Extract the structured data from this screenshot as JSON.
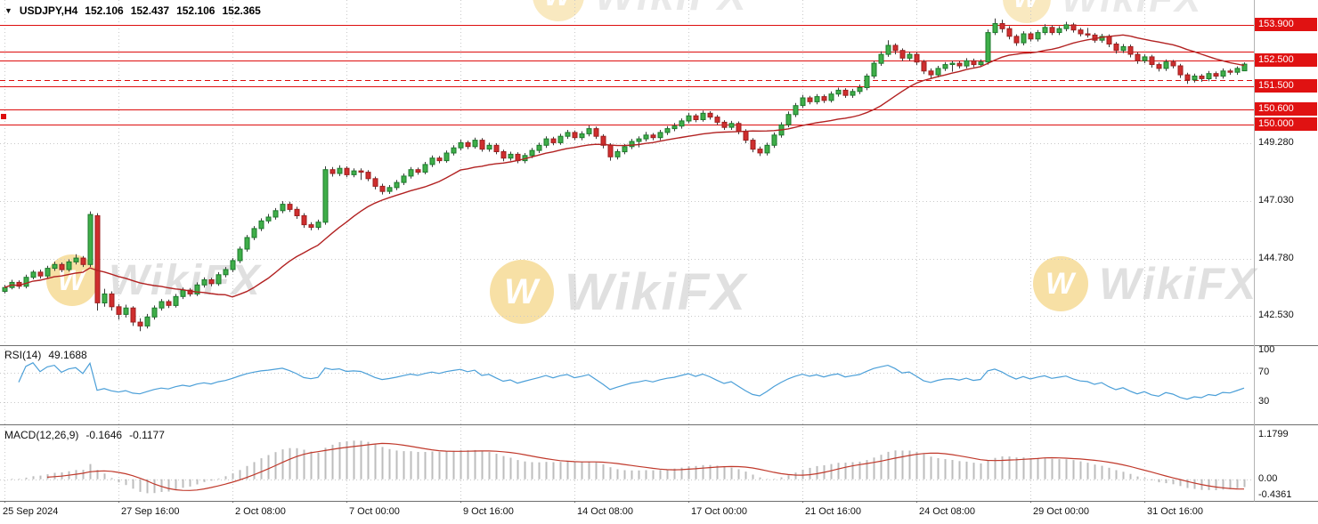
{
  "header": {
    "symbol": "USDJPY,H4",
    "open": "152.106",
    "high": "152.437",
    "low": "152.106",
    "close": "152.365",
    "collapse_glyph": "▼"
  },
  "watermark": {
    "text": "WikiFX",
    "logo": "W"
  },
  "colors": {
    "up": "#3fae49",
    "up_border": "#1c7a2c",
    "down": "#cf2e2e",
    "down_border": "#9e1f1f",
    "wick": "#3c3c3c",
    "ma": "#b22222",
    "rsi": "#4b9fd8",
    "macd_signal": "#c0392b",
    "macd_hist": "#bdbdbd",
    "level": "#dd0d0d",
    "level_badge": "#e01212",
    "grid": "#c9c9c9",
    "separator": "#6e6e6e",
    "axis_border": "#b3b3b3",
    "wm_gold": "#edbd3f",
    "wm_gray": "#c8c8c8"
  },
  "chart_data": {
    "type": "candlestick",
    "symbol": "USDJPY",
    "timeframe": "H4",
    "x_axis": {
      "note": "H4 forex bars, weekends skipped; vertical gridline every 16 bars",
      "labels": [
        {
          "text": "25 Sep 2024",
          "bar": 0
        },
        {
          "text": "27 Sep 16:00",
          "bar": 16
        },
        {
          "text": "2 Oct 08:00",
          "bar": 32
        },
        {
          "text": "7 Oct 00:00",
          "bar": 48
        },
        {
          "text": "9 Oct 16:00",
          "bar": 64
        },
        {
          "text": "14 Oct 08:00",
          "bar": 80
        },
        {
          "text": "17 Oct 00:00",
          "bar": 96
        },
        {
          "text": "21 Oct 16:00",
          "bar": 112
        },
        {
          "text": "24 Oct 08:00",
          "bar": 128
        },
        {
          "text": "29 Oct 00:00",
          "bar": 144
        },
        {
          "text": "31 Oct 16:00",
          "bar": 160
        }
      ]
    },
    "main_panel": {
      "ylim": [
        141.4,
        154.8
      ],
      "grid_lines": [
        {
          "price": 149.28,
          "label": "149.280"
        },
        {
          "price": 147.03,
          "label": "147.030"
        },
        {
          "price": 144.78,
          "label": "144.780"
        },
        {
          "price": 142.53,
          "label": "142.530"
        }
      ],
      "level_lines": [
        {
          "price": 153.9,
          "label": "153.900",
          "style": "solid",
          "badge": true
        },
        {
          "price": 152.85,
          "label": "",
          "style": "solid",
          "badge": false
        },
        {
          "price": 152.5,
          "label": "152.500",
          "style": "solid",
          "badge": true
        },
        {
          "price": 151.75,
          "label": "",
          "style": "dashed",
          "badge": false
        },
        {
          "price": 151.5,
          "label": "151.500",
          "style": "solid",
          "badge": true
        },
        {
          "price": 150.6,
          "label": "150.600",
          "style": "solid",
          "badge": true
        },
        {
          "price": 150.0,
          "label": "150.000",
          "style": "solid",
          "badge": true
        }
      ],
      "anchor_marker_price": 150.31,
      "ma_period": 20,
      "candles_format": [
        "open",
        "high",
        "low",
        "close"
      ],
      "candles": [
        [
          143.5,
          143.75,
          143.42,
          143.65
        ],
        [
          143.65,
          143.95,
          143.58,
          143.85
        ],
        [
          143.85,
          143.93,
          143.6,
          143.7
        ],
        [
          143.7,
          144.15,
          143.62,
          144.05
        ],
        [
          144.05,
          144.33,
          143.97,
          144.25
        ],
        [
          144.25,
          144.35,
          144.0,
          144.1
        ],
        [
          144.1,
          144.5,
          144.02,
          144.4
        ],
        [
          144.4,
          144.66,
          144.3,
          144.55
        ],
        [
          144.55,
          144.63,
          144.25,
          144.35
        ],
        [
          144.35,
          144.75,
          144.27,
          144.65
        ],
        [
          144.65,
          144.95,
          144.55,
          144.8
        ],
        [
          144.8,
          144.88,
          144.45,
          144.55
        ],
        [
          144.55,
          146.62,
          144.45,
          146.5
        ],
        [
          146.45,
          146.55,
          142.75,
          143.05
        ],
        [
          143.05,
          143.6,
          142.9,
          143.4
        ],
        [
          143.4,
          143.5,
          142.75,
          142.9
        ],
        [
          142.9,
          143.0,
          142.4,
          142.6
        ],
        [
          142.6,
          142.98,
          142.48,
          142.85
        ],
        [
          142.85,
          142.92,
          142.15,
          142.3
        ],
        [
          142.3,
          142.45,
          141.95,
          142.15
        ],
        [
          142.15,
          142.62,
          142.05,
          142.5
        ],
        [
          142.5,
          142.95,
          142.4,
          142.85
        ],
        [
          142.85,
          143.2,
          142.75,
          143.1
        ],
        [
          143.1,
          143.18,
          142.85,
          142.95
        ],
        [
          142.95,
          143.4,
          142.87,
          143.3
        ],
        [
          143.3,
          143.65,
          143.2,
          143.55
        ],
        [
          143.55,
          143.63,
          143.3,
          143.4
        ],
        [
          143.4,
          143.85,
          143.32,
          143.75
        ],
        [
          143.75,
          144.05,
          143.65,
          143.95
        ],
        [
          143.95,
          144.03,
          143.7,
          143.8
        ],
        [
          143.8,
          144.25,
          143.72,
          144.15
        ],
        [
          144.15,
          144.45,
          144.05,
          144.35
        ],
        [
          144.35,
          144.8,
          144.25,
          144.7
        ],
        [
          144.7,
          145.25,
          144.6,
          145.15
        ],
        [
          145.15,
          145.7,
          145.05,
          145.6
        ],
        [
          145.6,
          146.05,
          145.5,
          145.95
        ],
        [
          145.95,
          146.35,
          145.85,
          146.25
        ],
        [
          146.25,
          146.52,
          146.15,
          146.4
        ],
        [
          146.4,
          146.75,
          146.3,
          146.65
        ],
        [
          146.65,
          147.02,
          146.55,
          146.9
        ],
        [
          146.9,
          147.0,
          146.6,
          146.7
        ],
        [
          146.7,
          146.8,
          146.33,
          146.45
        ],
        [
          146.45,
          146.55,
          145.98,
          146.1
        ],
        [
          146.1,
          146.2,
          145.88,
          146.0
        ],
        [
          146.0,
          146.3,
          145.9,
          146.2
        ],
        [
          146.2,
          148.38,
          146.1,
          148.25
        ],
        [
          148.25,
          148.35,
          147.98,
          148.1
        ],
        [
          148.1,
          148.42,
          148.0,
          148.3
        ],
        [
          148.3,
          148.38,
          147.95,
          148.05
        ],
        [
          148.05,
          148.3,
          147.95,
          148.2
        ],
        [
          148.2,
          148.3,
          147.85,
          148.15
        ],
        [
          148.15,
          148.23,
          147.8,
          147.9
        ],
        [
          147.9,
          147.98,
          147.48,
          147.6
        ],
        [
          147.6,
          147.7,
          147.28,
          147.4
        ],
        [
          147.4,
          147.65,
          147.3,
          147.55
        ],
        [
          147.55,
          147.85,
          147.45,
          147.75
        ],
        [
          147.75,
          148.1,
          147.65,
          148.0
        ],
        [
          148.0,
          148.35,
          147.9,
          148.25
        ],
        [
          148.25,
          148.33,
          148.05,
          148.15
        ],
        [
          148.15,
          148.55,
          148.07,
          148.45
        ],
        [
          148.45,
          148.8,
          148.35,
          148.7
        ],
        [
          148.7,
          148.78,
          148.5,
          148.6
        ],
        [
          148.6,
          149.0,
          148.52,
          148.9
        ],
        [
          148.9,
          149.2,
          148.8,
          149.1
        ],
        [
          149.1,
          149.42,
          149.0,
          149.3
        ],
        [
          149.3,
          149.38,
          149.05,
          149.15
        ],
        [
          149.15,
          149.5,
          149.07,
          149.4
        ],
        [
          149.4,
          149.48,
          148.95,
          149.05
        ],
        [
          149.05,
          149.3,
          148.95,
          149.2
        ],
        [
          149.2,
          149.28,
          148.85,
          148.95
        ],
        [
          148.95,
          149.03,
          148.58,
          148.7
        ],
        [
          148.7,
          148.95,
          148.6,
          148.85
        ],
        [
          148.85,
          148.93,
          148.5,
          148.6
        ],
        [
          148.6,
          148.9,
          148.5,
          148.8
        ],
        [
          148.8,
          149.1,
          148.7,
          149.0
        ],
        [
          149.0,
          149.3,
          148.9,
          149.2
        ],
        [
          149.2,
          149.55,
          149.1,
          149.45
        ],
        [
          149.45,
          149.53,
          149.2,
          149.3
        ],
        [
          149.3,
          149.65,
          149.22,
          149.55
        ],
        [
          149.55,
          149.8,
          149.45,
          149.7
        ],
        [
          149.7,
          149.78,
          149.4,
          149.5
        ],
        [
          149.5,
          149.75,
          149.4,
          149.65
        ],
        [
          149.65,
          149.97,
          149.55,
          149.85
        ],
        [
          149.85,
          149.93,
          149.45,
          149.55
        ],
        [
          149.55,
          149.63,
          149.08,
          149.2
        ],
        [
          149.2,
          149.28,
          148.6,
          148.75
        ],
        [
          148.75,
          149.05,
          148.65,
          148.95
        ],
        [
          148.95,
          149.25,
          148.85,
          149.15
        ],
        [
          149.15,
          149.45,
          149.05,
          149.35
        ],
        [
          149.35,
          149.55,
          149.12,
          149.45
        ],
        [
          149.45,
          149.72,
          149.35,
          149.6
        ],
        [
          149.6,
          149.68,
          149.4,
          149.5
        ],
        [
          149.5,
          149.8,
          149.4,
          149.7
        ],
        [
          149.7,
          149.95,
          149.6,
          149.85
        ],
        [
          149.85,
          150.07,
          149.75,
          149.95
        ],
        [
          149.95,
          150.25,
          149.85,
          150.15
        ],
        [
          150.15,
          150.47,
          150.05,
          150.35
        ],
        [
          150.35,
          150.43,
          150.1,
          150.2
        ],
        [
          150.2,
          150.55,
          150.12,
          150.45
        ],
        [
          150.45,
          150.53,
          150.2,
          150.3
        ],
        [
          150.3,
          150.38,
          150.0,
          150.1
        ],
        [
          150.1,
          150.18,
          149.8,
          149.9
        ],
        [
          149.9,
          150.15,
          149.8,
          150.05
        ],
        [
          150.05,
          150.13,
          149.63,
          149.75
        ],
        [
          149.75,
          149.83,
          149.28,
          149.4
        ],
        [
          149.4,
          149.48,
          148.93,
          149.05
        ],
        [
          149.05,
          149.15,
          148.78,
          148.9
        ],
        [
          148.9,
          149.3,
          148.8,
          149.2
        ],
        [
          149.2,
          149.7,
          149.1,
          149.6
        ],
        [
          149.6,
          150.1,
          149.5,
          150.0
        ],
        [
          150.0,
          150.52,
          149.9,
          150.4
        ],
        [
          150.4,
          150.85,
          150.3,
          150.75
        ],
        [
          150.75,
          151.17,
          150.65,
          151.05
        ],
        [
          151.05,
          151.13,
          150.8,
          150.9
        ],
        [
          150.9,
          151.2,
          150.8,
          151.1
        ],
        [
          151.1,
          151.18,
          150.85,
          150.95
        ],
        [
          150.95,
          151.3,
          150.87,
          151.2
        ],
        [
          151.2,
          151.45,
          151.1,
          151.35
        ],
        [
          151.35,
          151.43,
          151.05,
          151.15
        ],
        [
          151.15,
          151.4,
          151.05,
          151.3
        ],
        [
          151.3,
          151.57,
          151.2,
          151.45
        ],
        [
          151.45,
          152.0,
          151.35,
          151.9
        ],
        [
          151.9,
          152.5,
          151.8,
          152.4
        ],
        [
          152.4,
          152.87,
          152.3,
          152.75
        ],
        [
          152.75,
          153.3,
          152.65,
          153.1
        ],
        [
          153.1,
          153.18,
          152.75,
          152.9
        ],
        [
          152.9,
          152.98,
          152.48,
          152.6
        ],
        [
          152.6,
          152.85,
          152.5,
          152.75
        ],
        [
          152.75,
          152.83,
          152.33,
          152.45
        ],
        [
          152.45,
          152.53,
          151.98,
          152.1
        ],
        [
          152.1,
          152.2,
          151.83,
          151.95
        ],
        [
          151.95,
          152.3,
          151.85,
          152.2
        ],
        [
          152.2,
          152.45,
          152.1,
          152.35
        ],
        [
          152.35,
          152.5,
          152.07,
          152.4
        ],
        [
          152.4,
          152.48,
          152.2,
          152.3
        ],
        [
          152.3,
          152.6,
          152.2,
          152.5
        ],
        [
          152.5,
          152.58,
          152.25,
          152.35
        ],
        [
          152.35,
          152.55,
          152.25,
          152.45
        ],
        [
          152.45,
          153.72,
          152.35,
          153.6
        ],
        [
          153.6,
          154.15,
          153.5,
          153.95
        ],
        [
          153.95,
          154.1,
          153.6,
          153.75
        ],
        [
          153.75,
          153.85,
          153.33,
          153.45
        ],
        [
          153.45,
          153.53,
          153.08,
          153.2
        ],
        [
          153.2,
          153.65,
          153.1,
          153.55
        ],
        [
          153.55,
          153.63,
          153.25,
          153.35
        ],
        [
          153.35,
          153.7,
          153.25,
          153.6
        ],
        [
          153.6,
          153.92,
          153.5,
          153.8
        ],
        [
          153.8,
          153.88,
          153.5,
          153.6
        ],
        [
          153.6,
          153.85,
          153.5,
          153.75
        ],
        [
          153.75,
          154.02,
          153.65,
          153.9
        ],
        [
          153.9,
          153.98,
          153.6,
          153.7
        ],
        [
          153.7,
          153.78,
          153.45,
          153.55
        ],
        [
          153.55,
          153.78,
          153.4,
          153.5
        ],
        [
          153.5,
          153.58,
          153.2,
          153.3
        ],
        [
          153.3,
          153.55,
          153.2,
          153.45
        ],
        [
          153.45,
          153.53,
          153.03,
          153.15
        ],
        [
          153.15,
          153.23,
          152.78,
          152.9
        ],
        [
          152.9,
          153.15,
          152.8,
          153.05
        ],
        [
          153.05,
          153.13,
          152.63,
          152.75
        ],
        [
          152.75,
          152.83,
          152.38,
          152.5
        ],
        [
          152.5,
          152.75,
          152.4,
          152.65
        ],
        [
          152.65,
          152.73,
          152.23,
          152.35
        ],
        [
          152.35,
          152.43,
          152.08,
          152.2
        ],
        [
          152.2,
          152.55,
          152.1,
          152.45
        ],
        [
          152.45,
          152.53,
          152.2,
          152.3
        ],
        [
          152.3,
          152.38,
          151.83,
          151.95
        ],
        [
          151.95,
          152.03,
          151.6,
          151.75
        ],
        [
          151.75,
          152.0,
          151.65,
          151.9
        ],
        [
          151.9,
          151.98,
          151.68,
          151.8
        ],
        [
          151.8,
          152.1,
          151.7,
          152.0
        ],
        [
          152.0,
          152.08,
          151.78,
          151.9
        ],
        [
          151.9,
          152.2,
          151.8,
          152.1
        ],
        [
          152.1,
          152.18,
          151.95,
          152.05
        ],
        [
          152.05,
          152.28,
          151.95,
          152.2
        ],
        [
          152.106,
          152.437,
          152.106,
          152.365
        ]
      ]
    },
    "rsi_panel": {
      "label_name": "RSI(14)",
      "label_value": "49.1688",
      "period": 14,
      "ylim": [
        0,
        106
      ],
      "levels": [
        70,
        30
      ],
      "axis_labels": [
        {
          "value": 100,
          "text": "100"
        },
        {
          "value": 70,
          "text": "70"
        },
        {
          "value": 30,
          "text": "30"
        }
      ]
    },
    "macd_panel": {
      "label_name": "MACD(12,26,9)",
      "label_value": "-0.1646",
      "label_signal": "-0.1177",
      "fast": 12,
      "slow": 26,
      "signal": 9,
      "ylim": [
        -0.58,
        1.45
      ],
      "axis_labels": [
        {
          "value": 1.1799,
          "text": "1.1799"
        },
        {
          "value": 0,
          "text": "0.00"
        },
        {
          "value": -0.4361,
          "text": "-0.4361"
        }
      ]
    }
  }
}
